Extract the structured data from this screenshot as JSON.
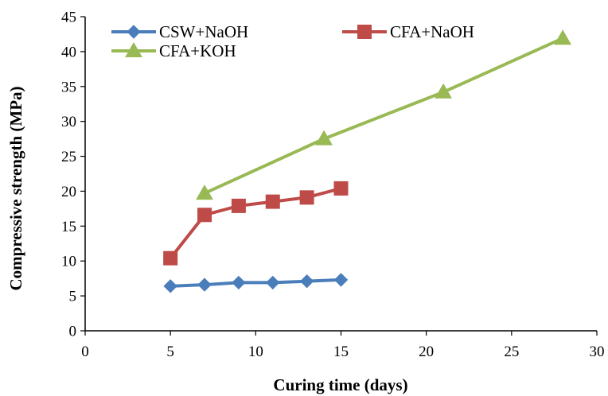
{
  "chart_data": {
    "type": "line",
    "xlabel": "Curing time (days)",
    "ylabel": "Compressive strength (MPa)",
    "xlim": [
      0,
      30
    ],
    "ylim": [
      0,
      45
    ],
    "xticks": [
      0,
      5,
      10,
      15,
      20,
      25,
      30
    ],
    "yticks": [
      0,
      5,
      10,
      15,
      20,
      25,
      30,
      35,
      40,
      45
    ],
    "grid": false,
    "legend": "top-left",
    "series": [
      {
        "name": "CSW+NaOH",
        "color": "#4a7ebb",
        "marker": "diamond",
        "points": [
          [
            5,
            6.4
          ],
          [
            7,
            6.6
          ],
          [
            9,
            6.9
          ],
          [
            11,
            6.9
          ],
          [
            13,
            7.1
          ],
          [
            15,
            7.3
          ]
        ]
      },
      {
        "name": "CFA+NaOH",
        "color": "#be4b48",
        "marker": "square",
        "points": [
          [
            5,
            10.4
          ],
          [
            7,
            16.6
          ],
          [
            9,
            17.9
          ],
          [
            11,
            18.5
          ],
          [
            13,
            19.1
          ],
          [
            15,
            20.4
          ]
        ]
      },
      {
        "name": "CFA+KOH",
        "color": "#98b954",
        "marker": "triangle",
        "points": [
          [
            7,
            19.7
          ],
          [
            14,
            27.5
          ],
          [
            21,
            34.2
          ],
          [
            28,
            41.9
          ]
        ]
      }
    ]
  }
}
